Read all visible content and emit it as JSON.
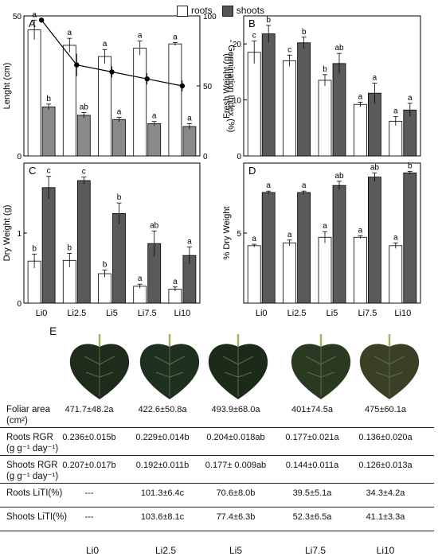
{
  "legend": {
    "roots": "roots",
    "shoots": "shoots"
  },
  "colors": {
    "roots": "#ffffff",
    "shoots": "#5a5a5a",
    "shootsA": "#8a8a8a",
    "line": "#000000"
  },
  "categories": [
    "Li0",
    "Li2.5",
    "Li5",
    "Li7.5",
    "Li10"
  ],
  "chart_data": [
    {
      "panel": "A",
      "type": "bar",
      "ylabel": "Lenght (cm)",
      "ylim": [
        0,
        50
      ],
      "yticks": [
        0,
        50
      ],
      "y2label": "- Germination Index (%)",
      "y2lim": [
        0,
        100
      ],
      "y2ticks": [
        0,
        50,
        100
      ],
      "series": [
        {
          "name": "roots",
          "values": [
            45.0,
            39.5,
            35.5,
            38.5,
            40.0
          ],
          "err": [
            3.5,
            2.5,
            2.5,
            2.5,
            0.5
          ],
          "letters": [
            "a",
            "a",
            "a",
            "a",
            "a"
          ]
        },
        {
          "name": "shoots",
          "values": [
            17.5,
            14.5,
            13.0,
            11.5,
            10.5
          ],
          "err": [
            1.0,
            1.0,
            0.8,
            0.8,
            1.0
          ],
          "letters": [
            "b",
            "ab",
            "a",
            "a",
            "a"
          ]
        }
      ],
      "line": {
        "name": "Germination Index",
        "values": [
          97,
          65,
          60,
          55,
          50
        ],
        "err": [
          0,
          8,
          4,
          4,
          4
        ]
      }
    },
    {
      "panel": "B",
      "type": "bar",
      "ylabel": "Fresh Weight (g)",
      "ylim": [
        0,
        25
      ],
      "yticks": [
        0,
        10,
        20
      ],
      "series": [
        {
          "name": "roots",
          "values": [
            18.5,
            17.0,
            13.5,
            9.2,
            6.2
          ],
          "err": [
            2.0,
            1.0,
            1.0,
            0.4,
            0.8
          ],
          "letters": [
            "c",
            "c",
            "b",
            "a",
            "a"
          ]
        },
        {
          "name": "shoots",
          "values": [
            21.8,
            20.2,
            16.5,
            11.2,
            8.2
          ],
          "err": [
            1.5,
            1.0,
            1.8,
            1.8,
            1.2
          ],
          "letters": [
            "b",
            "b",
            "ab",
            "a",
            "a"
          ]
        }
      ]
    },
    {
      "panel": "C",
      "type": "bar",
      "ylabel": "Dry Weight (g)",
      "ylim": [
        0,
        2
      ],
      "yticks": [
        0,
        1
      ],
      "series": [
        {
          "name": "roots",
          "values": [
            0.6,
            0.61,
            0.42,
            0.24,
            0.2
          ],
          "err": [
            0.1,
            0.1,
            0.05,
            0.03,
            0.03
          ],
          "letters": [
            "b",
            "b",
            "b",
            "a",
            "a"
          ]
        },
        {
          "name": "shoots",
          "values": [
            1.65,
            1.75,
            1.28,
            0.85,
            0.68
          ],
          "err": [
            0.16,
            0.05,
            0.15,
            0.18,
            0.12
          ],
          "letters": [
            "c",
            "c",
            "b",
            "ab",
            "a"
          ]
        }
      ]
    },
    {
      "panel": "D",
      "type": "bar",
      "ylabel": "% Dry Weight",
      "ylim": [
        0,
        10
      ],
      "yticks": [
        5
      ],
      "series": [
        {
          "name": "roots",
          "values": [
            4.1,
            4.3,
            4.7,
            4.7,
            4.1
          ],
          "err": [
            0.1,
            0.2,
            0.4,
            0.1,
            0.2
          ],
          "letters": [
            "a",
            "a",
            "a",
            "a",
            "a"
          ]
        },
        {
          "name": "shoots",
          "values": [
            7.9,
            7.9,
            8.4,
            9.0,
            9.3
          ],
          "err": [
            0.1,
            0.1,
            0.3,
            0.3,
            0.1
          ],
          "letters": [
            "a",
            "a",
            "ab",
            "ab",
            "b"
          ]
        }
      ]
    }
  ],
  "panelE": {
    "label": "E",
    "rows": [
      {
        "label1": "Foliar area",
        "label2": "(cm²)",
        "values": [
          "471.7±48.2a",
          "422.6±50.8a",
          "493.9±68.0a",
          "401±74.5a",
          "475±60.1a"
        ]
      },
      {
        "label1": "Roots RGR",
        "label2": "(g g⁻¹ day⁻¹)",
        "values": [
          "0.236±0.015b",
          "0.229±0.014b",
          "0.204±0.018ab",
          "0.177±0.021a",
          "0.136±0.020a"
        ]
      },
      {
        "label1": "Shoots RGR",
        "label2": "(g g⁻¹ day⁻¹)",
        "values": [
          "0.207±0.017b",
          "0.192±0.011b",
          "0.177± 0.009ab",
          "0.144±0.011a",
          "0.126±0.013a"
        ]
      },
      {
        "label1": "Roots LiTI(%)",
        "label2": "",
        "values": [
          "---",
          "101.3±6.4c",
          "70.6±8.0b",
          "39.5±5.1a",
          "34.3±4.2a"
        ]
      },
      {
        "label1": "Shoots LiTI(%)",
        "label2": "",
        "values": [
          "---",
          "103.6±8.1c",
          "77.4±6.3b",
          "52.3±6.5a",
          "41.1±3.3a"
        ]
      }
    ],
    "leaf_colors": [
      "#1f2c1b",
      "#203020",
      "#1c2a19",
      "#2a3a22",
      "#3a4026"
    ]
  }
}
